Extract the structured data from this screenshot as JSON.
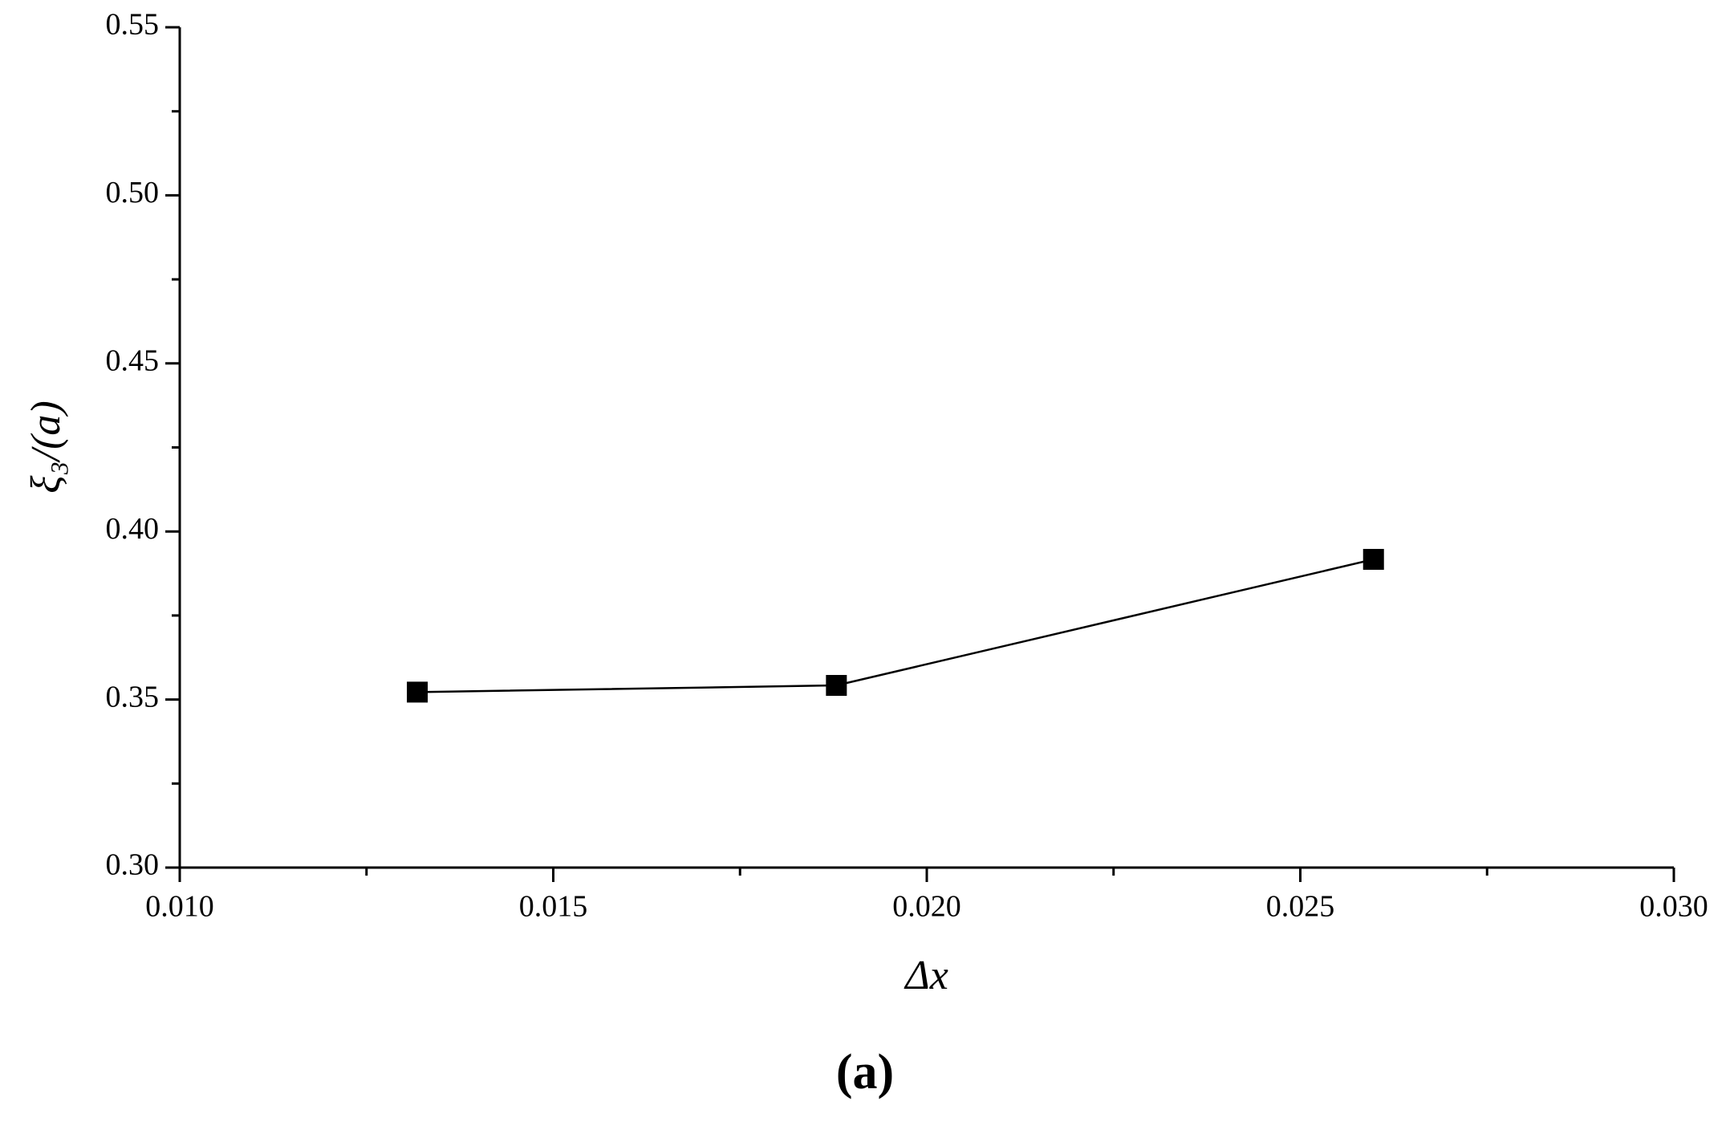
{
  "chart_data": {
    "type": "line",
    "xlabel": "Δx",
    "ylabel": "ξ₃/(a)",
    "caption": "(a)",
    "x": [
      0.01318,
      0.01879,
      0.02598
    ],
    "series": [
      {
        "color": "#000000",
        "values": [
          0.3522,
          0.3542,
          0.3917
        ]
      }
    ],
    "xlim": [
      0.01,
      0.03
    ],
    "xticks": [
      {
        "value": 0.01,
        "label": "0.010"
      },
      {
        "value": 0.015,
        "label": "0.015"
      },
      {
        "value": 0.02,
        "label": "0.020"
      },
      {
        "value": 0.025,
        "label": "0.025"
      },
      {
        "value": 0.03,
        "label": "0.030"
      }
    ],
    "ylim": [
      0.3,
      0.55
    ],
    "yticks": [
      {
        "value": 0.3,
        "label": "0.30"
      },
      {
        "value": 0.35,
        "label": "0.35"
      },
      {
        "value": 0.4,
        "label": "0.40"
      },
      {
        "value": 0.45,
        "label": "0.45"
      },
      {
        "value": 0.5,
        "label": "0.50"
      },
      {
        "value": 0.55,
        "label": "0.55"
      }
    ],
    "grid": false
  }
}
